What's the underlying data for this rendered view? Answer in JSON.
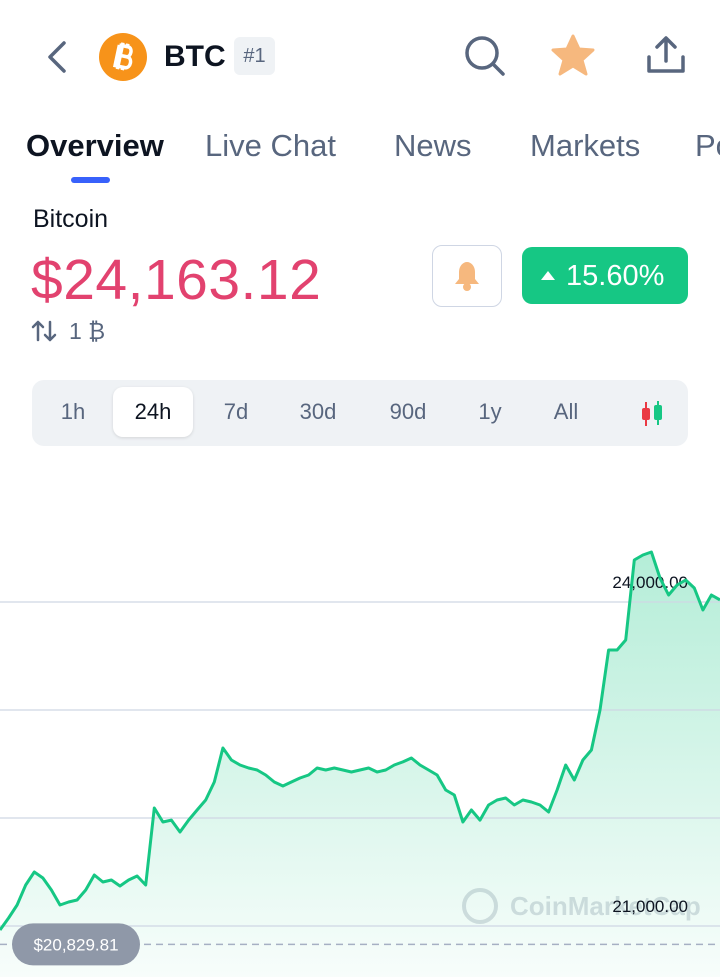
{
  "header": {
    "symbol": "BTC",
    "rank": "#1"
  },
  "tabs": [
    {
      "label": "Overview",
      "active": true
    },
    {
      "label": "Live Chat",
      "active": false
    },
    {
      "label": "News",
      "active": false
    },
    {
      "label": "Markets",
      "active": false
    },
    {
      "label": "Po",
      "active": false
    }
  ],
  "coin": {
    "name": "Bitcoin",
    "price": "$24,163.12",
    "change": "15.60%",
    "holding": "1 ₿"
  },
  "ranges": [
    {
      "label": "1h",
      "active": false
    },
    {
      "label": "24h",
      "active": true
    },
    {
      "label": "7d",
      "active": false
    },
    {
      "label": "30d",
      "active": false
    },
    {
      "label": "90d",
      "active": false
    },
    {
      "label": "1y",
      "active": false
    },
    {
      "label": "All",
      "active": false
    }
  ],
  "chart_data": {
    "type": "line",
    "color": "#16c784",
    "values": [
      20963,
      21074,
      21194,
      21380,
      21500,
      21444,
      21333,
      21194,
      21222,
      21241,
      21333,
      21472,
      21407,
      21426,
      21370,
      21426,
      21463,
      21380,
      22093,
      21963,
      21981,
      21870,
      21981,
      22074,
      22167,
      22333,
      22648,
      22537,
      22491,
      22463,
      22444,
      22398,
      22333,
      22296,
      22333,
      22370,
      22398,
      22463,
      22444,
      22463,
      22444,
      22426,
      22444,
      22463,
      22426,
      22444,
      22491,
      22519,
      22556,
      22491,
      22444,
      22398,
      22259,
      22213,
      21963,
      22074,
      21981,
      22120,
      22167,
      22185,
      22120,
      22167,
      22148,
      22120,
      22056,
      22259,
      22491,
      22352,
      22537,
      22630,
      23000,
      23556,
      23556,
      23648,
      24389,
      24435,
      24463,
      24222,
      24065,
      24157,
      24204,
      24130,
      23926,
      24065,
      24019
    ],
    "ylim": [
      20500,
      25250
    ],
    "yticks": [
      {
        "value": 24000,
        "label": "24,000.00"
      },
      {
        "value": 23000,
        "label": null
      },
      {
        "value": 22000,
        "label": null
      },
      {
        "value": 21000,
        "label": "21,000.00"
      }
    ],
    "grid": true,
    "reference": {
      "value": 20829.81,
      "label": "$20,829.81"
    },
    "watermark": "CoinMarketCap"
  }
}
